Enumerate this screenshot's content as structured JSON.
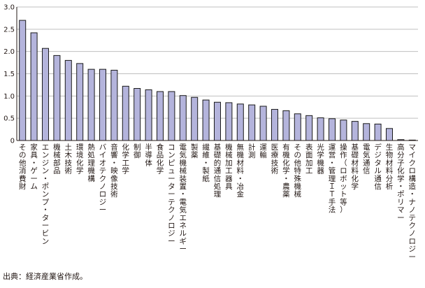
{
  "chart_data": {
    "type": "bar",
    "categories": [
      "その他消費財",
      "家具・ゲーム",
      "エンジン・ポンプ・タービン",
      "機械部品",
      "土木技術",
      "環境化学",
      "熱処理機構",
      "バイオテクノロジー",
      "音響・映像技術",
      "化学工学",
      "制御",
      "半導体",
      "食品化学",
      "コンピューターテクノロジー",
      "電気機械装置・電気エネルギー",
      "製薬",
      "繊維・製紙",
      "基礎的通信処理",
      "機械加工器具",
      "無機材料・冶金",
      "計測",
      "運輸",
      "医療技術",
      "有機化学・農薬",
      "その他特殊機械",
      "表面加工",
      "光学機器",
      "運営・管理ＩＴ手法",
      "操作（ロボット等）",
      "基礎材料化学",
      "電気通信",
      "デジタル通信",
      "生物材料分析",
      "高分子化学・ポリマー",
      "マイクロ構造・ナノテクノロジー"
    ],
    "values": [
      2.7,
      2.42,
      2.07,
      1.91,
      1.8,
      1.73,
      1.6,
      1.6,
      1.58,
      1.22,
      1.17,
      1.14,
      1.1,
      1.1,
      1.01,
      0.97,
      0.91,
      0.86,
      0.85,
      0.82,
      0.8,
      0.77,
      0.7,
      0.67,
      0.6,
      0.56,
      0.51,
      0.49,
      0.46,
      0.43,
      0.38,
      0.37,
      0.27,
      0.02,
      0.01
    ],
    "yticks": [
      "0",
      "0.5",
      "1.0",
      "1.5",
      "2.0",
      "2.5",
      "3.0"
    ],
    "ylim": [
      0,
      3.0
    ],
    "grid": true,
    "bar_color": "#b4b4dc",
    "bar_stroke": "#1a1a1a",
    "grid_color": "#bfbfbf",
    "title": "",
    "xlabel": "",
    "ylabel": ""
  },
  "source": "出典：経済産業省作成。"
}
